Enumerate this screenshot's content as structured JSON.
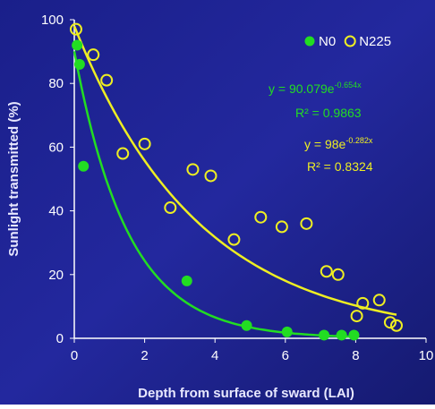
{
  "chart_data": {
    "type": "scatter",
    "x_label": "Depth from surface of sward (LAI)",
    "y_label": "Sunlight transmitted (%)",
    "xlim": [
      0,
      10
    ],
    "xticks": [
      0,
      2,
      4,
      6,
      8,
      10
    ],
    "ylim": [
      0,
      100
    ],
    "yticks": [
      0,
      20,
      40,
      60,
      80,
      100
    ],
    "legend": "top-right",
    "series": [
      {
        "name": "N0",
        "color": "#22dd22",
        "marker": "filled",
        "x": [
          0.08,
          0.15,
          0.26,
          3.2,
          4.9,
          6.05,
          7.1,
          7.6,
          7.95
        ],
        "values": [
          92,
          86,
          54,
          18,
          4,
          2,
          1,
          1,
          1
        ]
      },
      {
        "name": "N225",
        "color": "#eeee22",
        "marker": "open",
        "x": [
          0.05,
          0.54,
          0.92,
          1.38,
          2.0,
          2.73,
          3.37,
          3.88,
          4.54,
          5.3,
          5.9,
          6.6,
          7.17,
          7.5,
          8.03,
          8.2,
          8.67,
          8.98,
          9.16
        ],
        "values": [
          97,
          89,
          81,
          58,
          61,
          41,
          53,
          51,
          31,
          38,
          35,
          36,
          21,
          20,
          7,
          11,
          12,
          5,
          4
        ]
      }
    ],
    "trendlines": [
      {
        "series": 0,
        "a": 90.079,
        "b": -0.654,
        "equation": "y = 90.079e",
        "exponent": "-0.654x",
        "r2": "R² = 0.9863"
      },
      {
        "series": 1,
        "a": 98,
        "b": -0.282,
        "equation": "y = 98e",
        "exponent": "-0.282x",
        "r2": "R² = 0.8324"
      }
    ]
  }
}
